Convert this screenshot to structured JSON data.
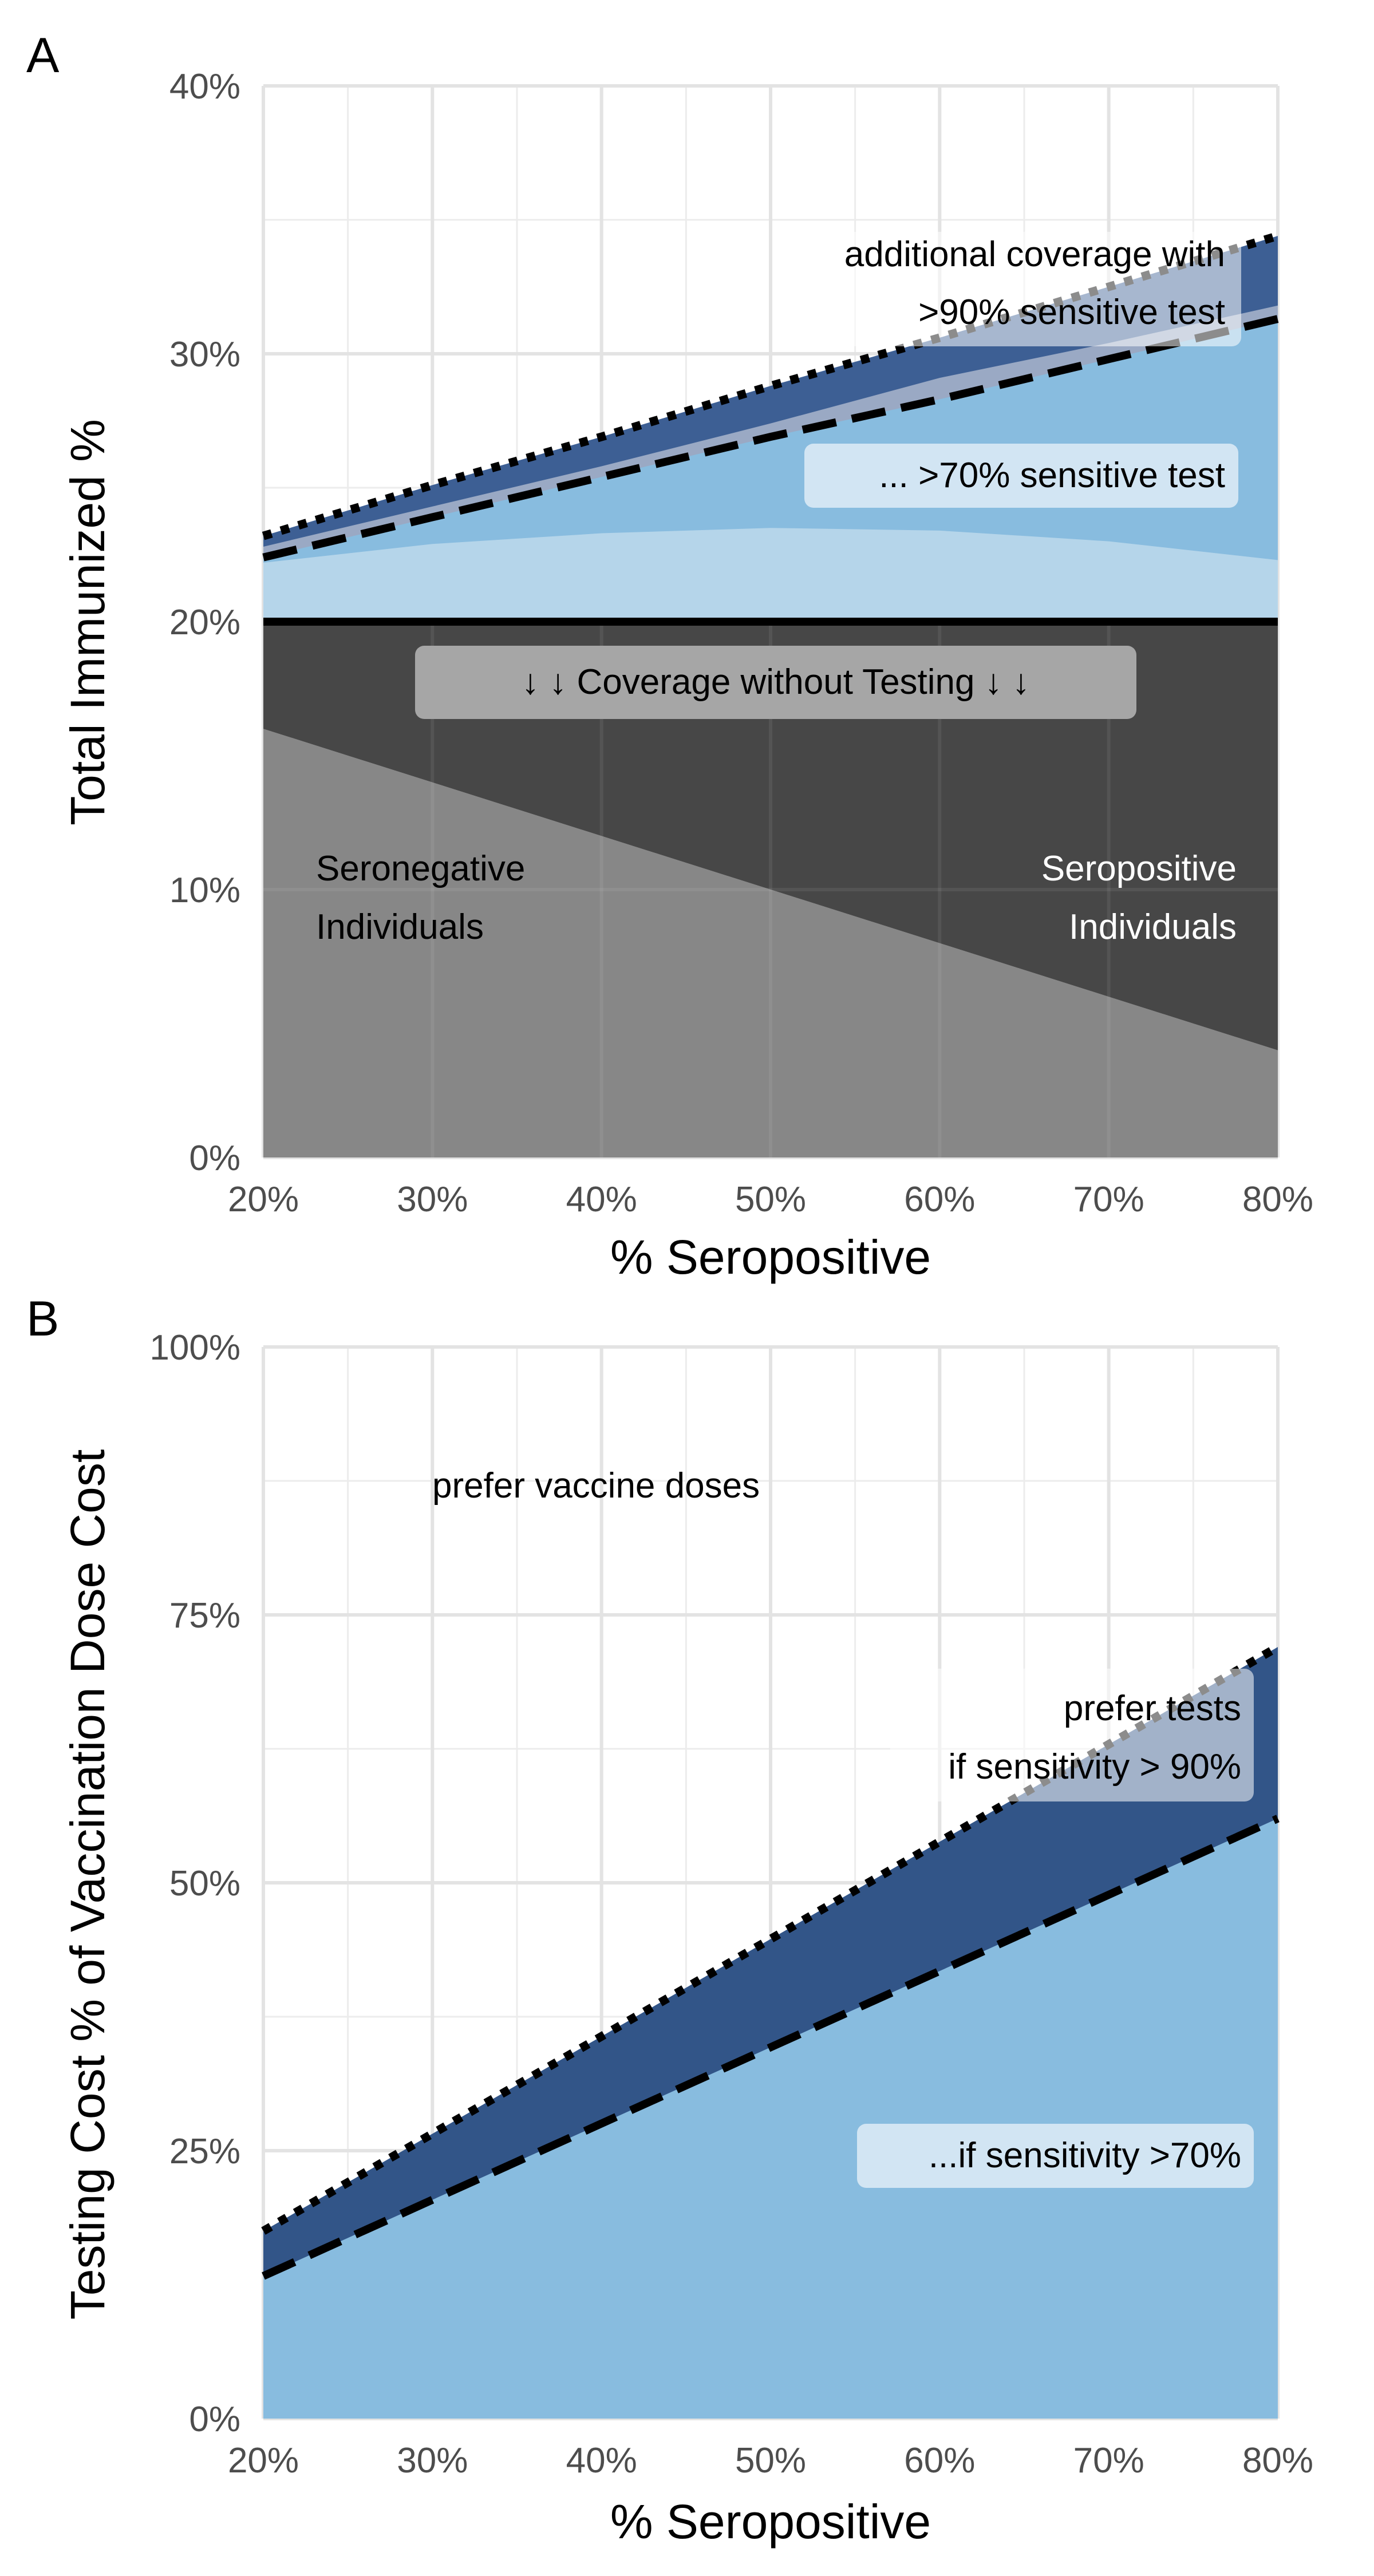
{
  "chart_data": [
    {
      "panel": "A",
      "type": "area",
      "xlabel": "% Seropositive",
      "ylabel": "Total Immunized %",
      "xlim": [
        20,
        80
      ],
      "ylim": [
        0,
        40
      ],
      "xticks": [
        "20%",
        "30%",
        "40%",
        "50%",
        "60%",
        "70%",
        "80%"
      ],
      "yticks": [
        "0%",
        "10%",
        "20%",
        "30%",
        "40%"
      ],
      "grid": true,
      "x": [
        20,
        30,
        40,
        50,
        60,
        70,
        80
      ],
      "series": [
        {
          "key": "seronegative",
          "values": [
            16,
            14,
            12,
            10,
            8,
            6,
            4
          ],
          "color": "#878787"
        },
        {
          "key": "seropositive",
          "values": [
            20,
            20,
            20,
            20,
            20,
            20,
            20
          ],
          "color": "#474747"
        },
        {
          "key": "light_band",
          "values": [
            22.2,
            22.9,
            23.3,
            23.5,
            23.4,
            23.0,
            22.3
          ],
          "color": "#b5d5ea"
        },
        {
          "key": "dashed_70",
          "values": [
            22.4,
            23.9,
            25.4,
            26.9,
            28.3,
            29.8,
            31.3
          ],
          "color": "#88bcdf"
        },
        {
          "key": "grey_band",
          "values": [
            22.8,
            24.3,
            25.8,
            27.4,
            29.1,
            30.4,
            31.8
          ],
          "color": "#9aa9c4"
        },
        {
          "key": "dotted_90",
          "values": [
            23.2,
            25.1,
            26.9,
            28.8,
            30.6,
            32.5,
            34.4
          ],
          "color": "#3d5f94"
        }
      ],
      "baseline_y": 20,
      "annotations": {
        "coverage": "↓  ↓  Coverage without Testing  ↓  ↓",
        "sensitive70": "... >70% sensitive test",
        "additional1": "additional coverage with",
        "additional2": ">90% sensitive test",
        "seroneg1": "Seronegative",
        "seroneg2": "Individuals",
        "seropos1": "Seropositive",
        "seropos2": "Individuals"
      }
    },
    {
      "panel": "B",
      "type": "area",
      "xlabel": "% Seropositive",
      "ylabel": "Testing Cost % of Vaccination Dose Cost",
      "xlim": [
        20,
        80
      ],
      "ylim": [
        0,
        100
      ],
      "xticks": [
        "20%",
        "30%",
        "40%",
        "50%",
        "60%",
        "70%",
        "80%"
      ],
      "yticks": [
        "0%",
        "25%",
        "50%",
        "75%",
        "100%"
      ],
      "grid": true,
      "x": [
        20,
        80
      ],
      "series": [
        {
          "key": "sensitivity_70",
          "values": [
            13.3,
            56
          ],
          "color": "#88bcdf"
        },
        {
          "key": "sensitivity_90",
          "values": [
            17.5,
            72
          ],
          "color": "#325588"
        }
      ],
      "annotations": {
        "prefer_vaccine": "prefer vaccine doses",
        "prefer_tests1": "prefer tests",
        "prefer_tests2": "if sensitivity > 90%",
        "sens70": "...if sensitivity >70%"
      }
    }
  ]
}
